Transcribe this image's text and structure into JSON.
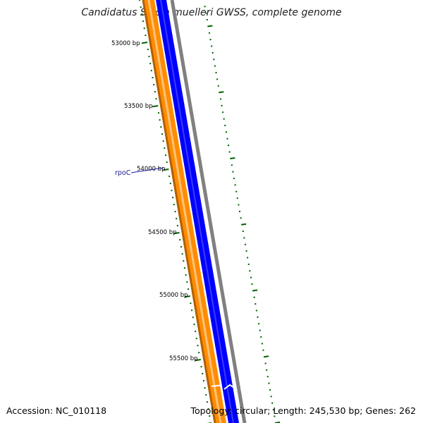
{
  "title": "Candidatus Sulcia muelleri GWSS, complete genome",
  "accession": "Accession: NC_010118",
  "topology": "Topology: circular; Length: 245,530 bp; Genes: 262",
  "gene_label": "rpoC",
  "ticks": [
    "53000 bp",
    "53500 bp",
    "54000 bp",
    "54500 bp",
    "55000 bp",
    "55500 bp"
  ],
  "colors": {
    "cds_reverse": "#ff8c00",
    "cds_reverse_dark": "#b35f00",
    "cds_forward": "#0000ff",
    "backbone": "#808080",
    "tick": "#006400",
    "label_line": "#1a1aaa"
  }
}
